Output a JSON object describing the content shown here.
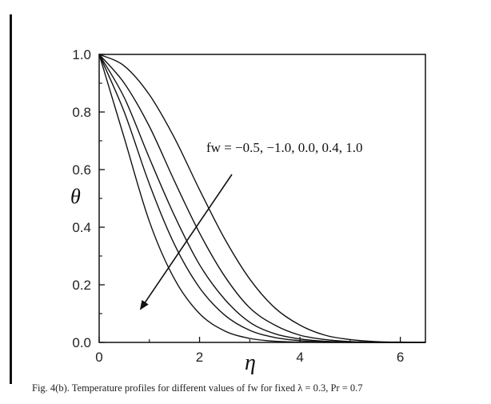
{
  "chart_data": {
    "type": "line",
    "xlabel": "η",
    "ylabel": "θ",
    "xlim": [
      0,
      6.5
    ],
    "ylim": [
      0,
      1.0
    ],
    "x_ticks": [
      "0",
      "2",
      "4",
      "6"
    ],
    "y_ticks": [
      "0.0",
      "0.2",
      "0.4",
      "0.6",
      "0.8",
      "1.0"
    ],
    "grid": false,
    "annotation": "fw = −0.5, −1.0, 0.0, 0.4, 1.0",
    "x": [
      0,
      0.5,
      1.0,
      1.5,
      2.0,
      2.5,
      3.0,
      3.5,
      4.0,
      4.5,
      5.0,
      5.5,
      6.0,
      6.5
    ],
    "series": [
      {
        "values": [
          1.0,
          0.96,
          0.86,
          0.71,
          0.53,
          0.36,
          0.22,
          0.12,
          0.06,
          0.025,
          0.01,
          0.003,
          0.001,
          0.0
        ]
      },
      {
        "values": [
          1.0,
          0.9,
          0.75,
          0.56,
          0.38,
          0.23,
          0.12,
          0.06,
          0.025,
          0.01,
          0.003,
          0.001,
          0.0,
          0.0
        ]
      },
      {
        "values": [
          1.0,
          0.85,
          0.64,
          0.44,
          0.27,
          0.15,
          0.07,
          0.03,
          0.012,
          0.004,
          0.001,
          0.0,
          0.0,
          0.0
        ]
      },
      {
        "values": [
          1.0,
          0.8,
          0.55,
          0.34,
          0.19,
          0.095,
          0.042,
          0.017,
          0.006,
          0.002,
          0.0,
          0.0,
          0.0,
          0.0
        ]
      },
      {
        "values": [
          1.0,
          0.71,
          0.42,
          0.22,
          0.1,
          0.04,
          0.014,
          0.004,
          0.001,
          0.0,
          0.0,
          0.0,
          0.0,
          0.0
        ]
      }
    ]
  },
  "caption": "Fig. 4(b). Temperature profiles for different values of fw for fixed λ = 0.3, Pr = 0.7"
}
